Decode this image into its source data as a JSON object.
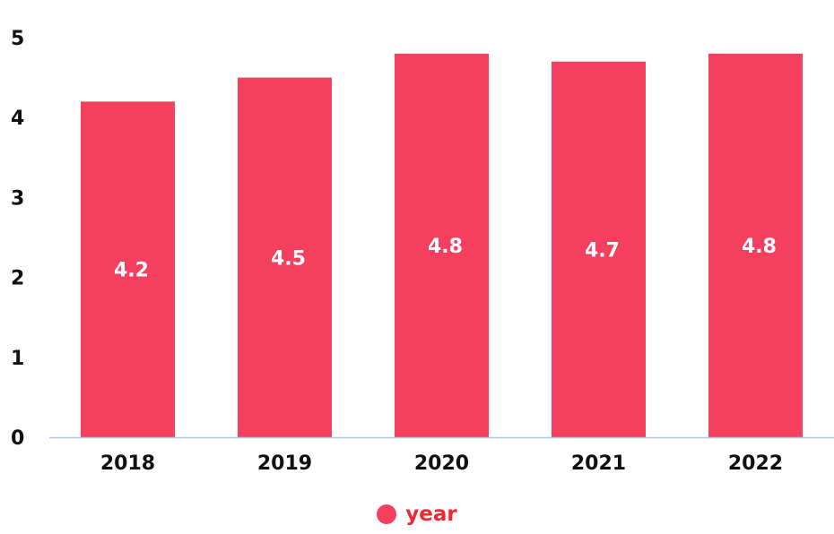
{
  "colors": {
    "bar": "#f43f5e",
    "legend_text": "#f0282f",
    "axis_line": "#b8c8dc",
    "tick_text": "#111111",
    "bar_label_text": "#ffffff"
  },
  "legend": {
    "label": "year",
    "position": "bottom-center"
  },
  "chart_data": {
    "type": "bar",
    "title": "",
    "xlabel": "",
    "ylabel": "",
    "categories": [
      "2018",
      "2019",
      "2020",
      "2021",
      "2022"
    ],
    "series": [
      {
        "name": "year",
        "values": [
          4.2,
          4.5,
          4.8,
          4.7,
          4.8
        ]
      }
    ],
    "data_labels": [
      "4.2",
      "4.5",
      "4.8",
      "4.7",
      "4.8"
    ],
    "ylim": [
      0,
      5
    ],
    "yticks": [
      "0",
      "1",
      "2",
      "3",
      "4",
      "5"
    ],
    "grid": false
  }
}
